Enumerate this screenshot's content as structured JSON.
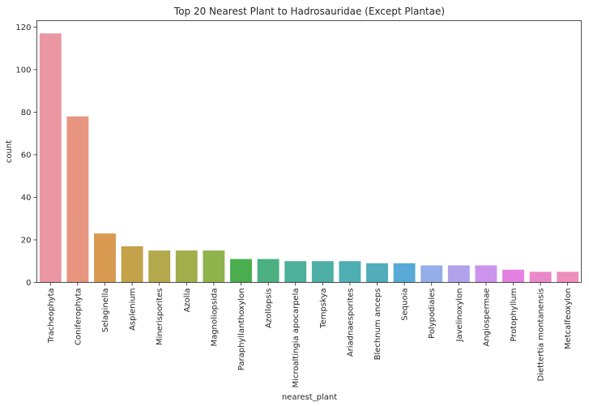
{
  "chart_data": {
    "type": "bar",
    "title": "Top 20 Nearest Plant to Hadrosauridae (Except Plantae)",
    "xlabel": "nearest_plant",
    "ylabel": "count",
    "ylim": [
      0,
      123
    ],
    "yticks": [
      0,
      20,
      40,
      60,
      80,
      100,
      120
    ],
    "grid": false,
    "categories": [
      "Tracheophyta",
      "Coniferophyta",
      "Selaginella",
      "Asplenium",
      "Minerisporites",
      "Azolla",
      "Magnoliopsida",
      "Paraphyllanthoxylon",
      "Azollopsis",
      "Microaltingia apocarpela",
      "Tempskya",
      "Ariadnaesporites",
      "Blechnum anceps",
      "Sequoia",
      "Polypodiales",
      "Javelinoxylon",
      "Angiospermae",
      "Protophyllum",
      "Diettertia montanensis",
      "Metcalfeoxylon"
    ],
    "values": [
      117,
      78,
      23,
      17,
      15,
      15,
      15,
      11,
      11,
      10,
      10,
      10,
      9,
      9,
      8,
      8,
      8,
      6,
      5,
      5
    ],
    "colors": [
      "#ea96a3",
      "#e7957f",
      "#d89a51",
      "#c4a24a",
      "#b4a84c",
      "#a2ad4c",
      "#8fb34d",
      "#4aae4e",
      "#4cb083",
      "#4db09a",
      "#4eafa6",
      "#4faeb2",
      "#51acbc",
      "#58a9d5",
      "#94aee9",
      "#b0a3ec",
      "#cc94ec",
      "#e581e1",
      "#eb88c9",
      "#ed8fbb"
    ]
  }
}
